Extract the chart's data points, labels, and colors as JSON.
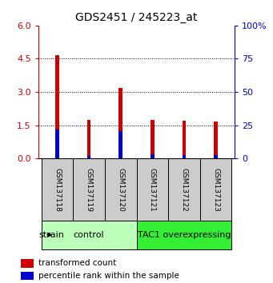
{
  "title": "GDS2451 / 245223_at",
  "samples": [
    "GSM137118",
    "GSM137119",
    "GSM137120",
    "GSM137121",
    "GSM137122",
    "GSM137123"
  ],
  "red_values": [
    4.65,
    1.75,
    3.2,
    1.75,
    1.72,
    1.68
  ],
  "blue_values": [
    1.3,
    0.12,
    1.22,
    0.18,
    0.14,
    0.16
  ],
  "ylim_left": [
    0,
    6
  ],
  "ylim_right": [
    0,
    100
  ],
  "yticks_left": [
    0,
    1.5,
    3,
    4.5,
    6
  ],
  "yticks_right": [
    0,
    25,
    50,
    75,
    100
  ],
  "groups": [
    {
      "label": "control",
      "start": 0,
      "end": 3,
      "color": "#bbffbb"
    },
    {
      "label": "TAC1 overexpressing",
      "start": 3,
      "end": 6,
      "color": "#33ee33"
    }
  ],
  "bar_width": 0.12,
  "red_color": "#cc0000",
  "blue_color": "#0000cc",
  "label_red": "transformed count",
  "label_blue": "percentile rank within the sample",
  "strain_label": "strain",
  "tick_color_left": "#cc0000",
  "tick_color_right": "#0000cc",
  "sample_box_color": "#cccccc",
  "plot_bg": "#ffffff"
}
